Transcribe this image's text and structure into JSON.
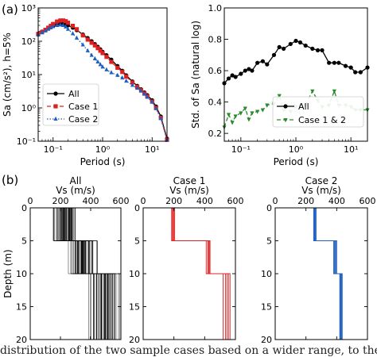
{
  "figure": {
    "panel_a_label": "(a)",
    "panel_b_label": "(b)",
    "caption_fragment": "distribution of the two sample cases based on a wider range, to the details more and"
  },
  "colors": {
    "all": "#000000",
    "case1": "#e02020",
    "case2": "#1f5fbf",
    "case12": "#2a8a2a"
  },
  "chart_data": [
    {
      "id": "sa",
      "type": "line",
      "xscale": "log",
      "yscale": "log",
      "xlim": [
        0.05,
        20
      ],
      "ylim": [
        0.1,
        1000
      ],
      "xlabel": "Period (s)",
      "ylabel": "Sa (cm/s²), h=5%",
      "xticks": [
        {
          "v": 0.1,
          "label": "10⁻¹"
        },
        {
          "v": 1,
          "label": "10⁰"
        },
        {
          "v": 10,
          "label": "10¹"
        }
      ],
      "yticks": [
        {
          "v": 0.1,
          "label": "10⁻¹"
        },
        {
          "v": 1,
          "label": "10⁰"
        },
        {
          "v": 10,
          "label": "10¹"
        },
        {
          "v": 100,
          "label": "10²"
        },
        {
          "v": 1000,
          "label": "10³"
        }
      ],
      "legend_position": "lower-left",
      "x": [
        0.05,
        0.06,
        0.07,
        0.08,
        0.09,
        0.1,
        0.12,
        0.14,
        0.16,
        0.18,
        0.2,
        0.25,
        0.3,
        0.4,
        0.5,
        0.6,
        0.7,
        0.8,
        0.9,
        1.0,
        1.2,
        1.5,
        2,
        2.5,
        3,
        4,
        5,
        6,
        7,
        8,
        10,
        12,
        15,
        20
      ],
      "series": [
        {
          "name": "All",
          "color_key": "all",
          "dash": "solid",
          "marker": "circle",
          "values": [
            170,
            195,
            220,
            245,
            265,
            285,
            310,
            330,
            335,
            325,
            300,
            255,
            215,
            160,
            125,
            100,
            82,
            68,
            57,
            48,
            38,
            28,
            18,
            13,
            9.5,
            6.2,
            4.6,
            3.6,
            2.9,
            2.4,
            1.7,
            1.1,
            0.55,
            0.12
          ]
        },
        {
          "name": "Case 1",
          "color_key": "case1",
          "dash": "dashed",
          "marker": "square",
          "values": [
            165,
            190,
            220,
            255,
            290,
            330,
            390,
            420,
            420,
            400,
            360,
            290,
            230,
            150,
            112,
            90,
            75,
            62,
            52,
            44,
            34,
            24,
            16,
            12,
            8.7,
            5.8,
            4.3,
            3.4,
            2.7,
            2.2,
            1.55,
            1.0,
            0.5,
            0.11
          ]
        },
        {
          "name": "Case 2",
          "color_key": "case2",
          "dash": "dotted",
          "marker": "triangle",
          "values": [
            155,
            180,
            205,
            230,
            255,
            275,
            300,
            310,
            300,
            270,
            230,
            170,
            125,
            78,
            52,
            38,
            30,
            24,
            20,
            17,
            14,
            11.5,
            9.5,
            8,
            6.4,
            4.8,
            3.9,
            3.2,
            2.6,
            2.1,
            1.5,
            0.95,
            0.48,
            0.11
          ]
        }
      ]
    },
    {
      "id": "std",
      "type": "line",
      "xscale": "log",
      "yscale": "linear",
      "xlim": [
        0.05,
        20
      ],
      "ylim": [
        0.15,
        1.0
      ],
      "xlabel": "Period (s)",
      "ylabel": "Std. of Sa (natural log)",
      "xticks": [
        {
          "v": 0.1,
          "label": "10⁻¹"
        },
        {
          "v": 1,
          "label": "10⁰"
        },
        {
          "v": 10,
          "label": "10¹"
        }
      ],
      "yticks": [
        {
          "v": 0.2,
          "label": "0.2"
        },
        {
          "v": 0.4,
          "label": "0.4"
        },
        {
          "v": 0.6,
          "label": "0.6"
        },
        {
          "v": 0.8,
          "label": "0.8"
        },
        {
          "v": 1.0,
          "label": "1.0"
        }
      ],
      "legend_position": "lower-right",
      "x": [
        0.05,
        0.06,
        0.07,
        0.08,
        0.1,
        0.12,
        0.14,
        0.16,
        0.2,
        0.25,
        0.3,
        0.4,
        0.5,
        0.6,
        0.8,
        1.0,
        1.2,
        1.5,
        2,
        2.5,
        3,
        4,
        5,
        6,
        8,
        10,
        12,
        15,
        20
      ],
      "series": [
        {
          "name": "All",
          "color_key": "all",
          "dash": "solid",
          "marker": "circle",
          "values": [
            0.52,
            0.55,
            0.57,
            0.56,
            0.58,
            0.6,
            0.61,
            0.6,
            0.65,
            0.66,
            0.64,
            0.7,
            0.75,
            0.74,
            0.77,
            0.79,
            0.78,
            0.76,
            0.74,
            0.73,
            0.73,
            0.65,
            0.65,
            0.65,
            0.63,
            0.62,
            0.59,
            0.59,
            0.62
          ]
        },
        {
          "name": "Case 1 & 2",
          "color_key": "case12",
          "dash": "dashed",
          "marker": "triangle-down",
          "values": [
            0.24,
            0.32,
            0.27,
            0.31,
            0.33,
            0.36,
            0.29,
            0.33,
            0.34,
            0.35,
            0.38,
            0.39,
            0.44,
            0.35,
            0.34,
            0.37,
            0.37,
            0.38,
            0.47,
            0.41,
            0.37,
            0.38,
            0.47,
            0.38,
            0.38,
            0.37,
            0.35,
            0.35,
            0.35
          ]
        }
      ]
    },
    {
      "id": "vs-all",
      "type": "step",
      "title": "All",
      "xlabel": "Vs (m/s)",
      "ylabel": "Depth (m)",
      "xlim": [
        0,
        600
      ],
      "ylim": [
        20,
        0
      ],
      "xticks": [
        0,
        200,
        400,
        600
      ],
      "yticks": [
        0,
        5,
        10,
        15,
        20
      ],
      "color_key": "all",
      "layer_boundaries": [
        5,
        10
      ],
      "layer_vs_ranges": [
        [
          150,
          300
        ],
        [
          230,
          450
        ],
        [
          350,
          600
        ]
      ]
    },
    {
      "id": "vs-case1",
      "type": "step",
      "title": "Case 1",
      "xlabel": "Vs (m/s)",
      "xlim": [
        0,
        600
      ],
      "ylim": [
        20,
        0
      ],
      "xticks": [
        0,
        200,
        400,
        600
      ],
      "yticks": [
        0,
        5,
        10,
        15,
        20
      ],
      "color_key": "case1",
      "layer_boundaries": [
        5,
        10
      ],
      "profiles": [
        [
          185,
          410,
          520
        ],
        [
          190,
          420,
          535
        ],
        [
          195,
          425,
          545
        ],
        [
          200,
          430,
          555
        ],
        [
          205,
          435,
          565
        ]
      ]
    },
    {
      "id": "vs-case2",
      "type": "step",
      "title": "Case 2",
      "xlabel": "Vs (m/s)",
      "xlim": [
        0,
        600
      ],
      "ylim": [
        20,
        0
      ],
      "xticks": [
        0,
        200,
        400,
        600
      ],
      "yticks": [
        0,
        5,
        10,
        15,
        20
      ],
      "color_key": "case2",
      "layer_boundaries": [
        5,
        10
      ],
      "profiles": [
        [
          250,
          380,
          420
        ],
        [
          254,
          385,
          424
        ],
        [
          258,
          390,
          428
        ],
        [
          262,
          395,
          432
        ],
        [
          266,
          400,
          436
        ]
      ]
    }
  ]
}
